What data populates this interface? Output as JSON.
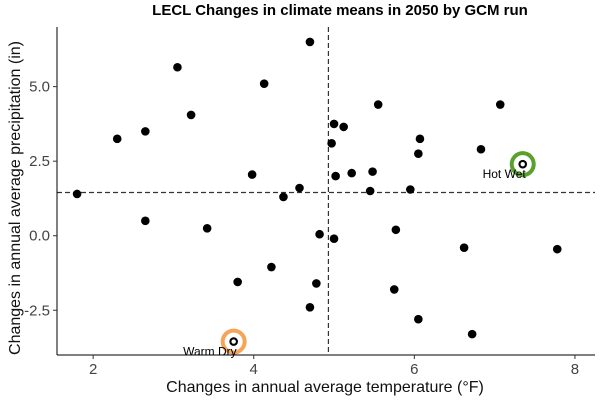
{
  "chart_data": {
    "type": "scatter",
    "title": "LECL Changes in climate means in 2050 by GCM run",
    "xlabel": "Changes in annual average temperature (°F)",
    "ylabel": "Changes in annual average precipitation (in)",
    "xlim": [
      1.55,
      8.25
    ],
    "ylim": [
      -4.0,
      7.0
    ],
    "x_ticks": [
      2,
      4,
      6,
      8
    ],
    "x_tick_labels": [
      "2",
      "4",
      "6",
      "8"
    ],
    "y_ticks": [
      -2.5,
      0.0,
      2.5,
      5.0
    ],
    "y_tick_labels": [
      "-2.5",
      "0.0",
      "2.5",
      "5.0"
    ],
    "grid": false,
    "reference_lines": {
      "x": 4.93,
      "y": 1.45
    },
    "points": [
      {
        "x": 1.8,
        "y": 1.4
      },
      {
        "x": 2.3,
        "y": 3.25
      },
      {
        "x": 2.65,
        "y": 3.5
      },
      {
        "x": 2.65,
        "y": 0.5
      },
      {
        "x": 3.05,
        "y": 5.65
      },
      {
        "x": 3.22,
        "y": 4.05
      },
      {
        "x": 3.42,
        "y": 0.25
      },
      {
        "x": 3.75,
        "y": -3.55
      },
      {
        "x": 3.8,
        "y": -1.55
      },
      {
        "x": 3.98,
        "y": 2.05
      },
      {
        "x": 4.13,
        "y": 5.1
      },
      {
        "x": 4.22,
        "y": -1.05
      },
      {
        "x": 4.37,
        "y": 1.3
      },
      {
        "x": 4.57,
        "y": 1.6
      },
      {
        "x": 4.7,
        "y": 6.5
      },
      {
        "x": 4.7,
        "y": -2.4
      },
      {
        "x": 4.78,
        "y": -1.6
      },
      {
        "x": 4.82,
        "y": 0.05
      },
      {
        "x": 4.97,
        "y": 3.1
      },
      {
        "x": 5.0,
        "y": 3.75
      },
      {
        "x": 5.0,
        "y": -0.1
      },
      {
        "x": 5.02,
        "y": 2.0
      },
      {
        "x": 5.12,
        "y": 3.65
      },
      {
        "x": 5.22,
        "y": 2.1
      },
      {
        "x": 5.45,
        "y": 1.5
      },
      {
        "x": 5.48,
        "y": 2.15
      },
      {
        "x": 5.55,
        "y": 4.4
      },
      {
        "x": 5.75,
        "y": -1.8
      },
      {
        "x": 5.77,
        "y": 0.2
      },
      {
        "x": 5.95,
        "y": 1.55
      },
      {
        "x": 6.05,
        "y": 2.75
      },
      {
        "x": 6.07,
        "y": 3.25
      },
      {
        "x": 6.05,
        "y": -2.8
      },
      {
        "x": 6.62,
        "y": -0.4
      },
      {
        "x": 6.72,
        "y": -3.3
      },
      {
        "x": 6.83,
        "y": 2.9
      },
      {
        "x": 7.07,
        "y": 4.4
      },
      {
        "x": 7.35,
        "y": 2.4
      },
      {
        "x": 7.78,
        "y": -0.45
      }
    ],
    "highlights": [
      {
        "label": "Hot Wet",
        "x": 7.35,
        "y": 2.4,
        "color": "#5aa02c",
        "label_anchor": "left"
      },
      {
        "label": "Warm Dry",
        "x": 3.75,
        "y": -3.55,
        "color": "#f5a55a",
        "label_anchor": "left"
      }
    ]
  }
}
